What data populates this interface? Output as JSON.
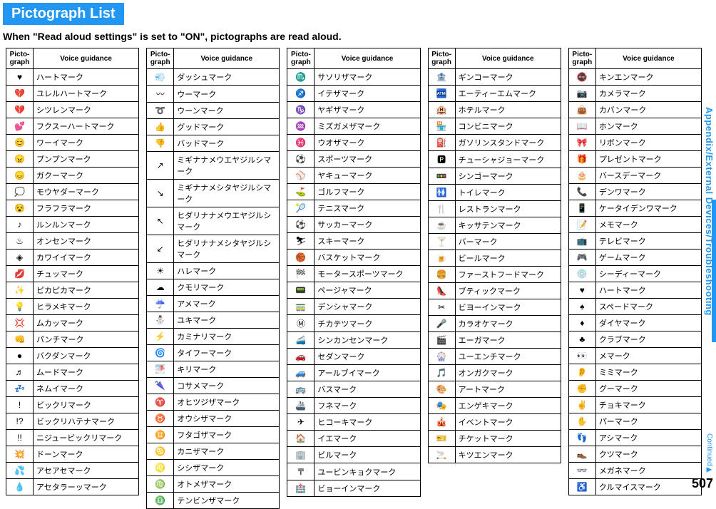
{
  "title": "Pictograph List",
  "subtitle": "When \"Read aloud settings\" is set to \"ON\", pictographs are read aloud.",
  "header1": "Picto-\ngraph",
  "header2": "Voice guidance",
  "sideTab": "Appendix/External Devices/Troubleshooting",
  "continued": "Continued",
  "pageNum": "507",
  "columns": [
    [
      {
        "i": "♥",
        "v": "ハートマーク"
      },
      {
        "i": "💔",
        "v": "ユレルハートマーク"
      },
      {
        "i": "💔",
        "v": "シツレンマーク"
      },
      {
        "i": "💕",
        "v": "フクスーハートマーク"
      },
      {
        "i": "😊",
        "v": "ワーイマーク"
      },
      {
        "i": "😠",
        "v": "プンプンマーク"
      },
      {
        "i": "😞",
        "v": "ガクーマーク"
      },
      {
        "i": "💭",
        "v": "モウヤダーマーク"
      },
      {
        "i": "😵",
        "v": "フラフラマーク"
      },
      {
        "i": "♪",
        "v": "ルンルンマーク"
      },
      {
        "i": "♨",
        "v": "オンセンマーク"
      },
      {
        "i": "◈",
        "v": "カワイイマーク"
      },
      {
        "i": "💋",
        "v": "チュッマーク"
      },
      {
        "i": "✨",
        "v": "ピカピカマーク"
      },
      {
        "i": "💡",
        "v": "ヒラメキマーク"
      },
      {
        "i": "💢",
        "v": "ムカッマーク"
      },
      {
        "i": "👊",
        "v": "パンチマーク"
      },
      {
        "i": "●",
        "v": "バクダンマーク"
      },
      {
        "i": "♬",
        "v": "ムードマーク"
      },
      {
        "i": "💤",
        "v": "ネムイマーク"
      },
      {
        "i": "!",
        "v": "ビックリマーク"
      },
      {
        "i": "!?",
        "v": "ビックリハテナマーク"
      },
      {
        "i": "!!",
        "v": "ニジュービックリマーク"
      },
      {
        "i": "💥",
        "v": "ドーンマーク"
      },
      {
        "i": "💦",
        "v": "アセアセマーク"
      },
      {
        "i": "💧",
        "v": "アセタラーッマーク"
      }
    ],
    [
      {
        "i": "💨",
        "v": "ダッシュマーク"
      },
      {
        "i": "〰",
        "v": "ウーマーク"
      },
      {
        "i": "➰",
        "v": "ウーンマーク"
      },
      {
        "i": "👍",
        "v": "グッドマーク"
      },
      {
        "i": "👎",
        "v": "バッドマーク"
      },
      {
        "i": "↗",
        "v": "ミギナナメウエヤジルシマーク"
      },
      {
        "i": "↘",
        "v": "ミギナナメシタヤジルシマーク"
      },
      {
        "i": "↖",
        "v": "ヒダリナナメウエヤジルシマーク"
      },
      {
        "i": "↙",
        "v": "ヒダリナナメシタヤジルシマーク"
      },
      {
        "i": "☀",
        "v": "ハレマーク"
      },
      {
        "i": "☁",
        "v": "クモリマーク"
      },
      {
        "i": "☔",
        "v": "アメマーク"
      },
      {
        "i": "⛄",
        "v": "ユキマーク"
      },
      {
        "i": "⚡",
        "v": "カミナリマーク"
      },
      {
        "i": "🌀",
        "v": "タイフーマーク"
      },
      {
        "i": "🌁",
        "v": "キリマーク"
      },
      {
        "i": "🌂",
        "v": "コサメマーク"
      },
      {
        "i": "♈",
        "v": "オヒツジザマーク"
      },
      {
        "i": "♉",
        "v": "オウシザマーク"
      },
      {
        "i": "♊",
        "v": "フタゴザマーク"
      },
      {
        "i": "♋",
        "v": "カニザマーク"
      },
      {
        "i": "♌",
        "v": "シシザマーク"
      },
      {
        "i": "♍",
        "v": "オトメザマーク"
      },
      {
        "i": "♎",
        "v": "テンビンザマーク"
      }
    ],
    [
      {
        "i": "♏",
        "v": "サソリザマーク"
      },
      {
        "i": "♐",
        "v": "イテザマーク"
      },
      {
        "i": "♑",
        "v": "ヤギザマーク"
      },
      {
        "i": "♒",
        "v": "ミズガメザマーク"
      },
      {
        "i": "♓",
        "v": "ウオザマーク"
      },
      {
        "i": "⚽",
        "v": "スポーツマーク"
      },
      {
        "i": "⚾",
        "v": "ヤキューマーク"
      },
      {
        "i": "⛳",
        "v": "ゴルフマーク"
      },
      {
        "i": "🎾",
        "v": "テニスマーク"
      },
      {
        "i": "⚽",
        "v": "サッカーマーク"
      },
      {
        "i": "⛷",
        "v": "スキーマーク"
      },
      {
        "i": "🏀",
        "v": "バスケットマーク"
      },
      {
        "i": "🏁",
        "v": "モータースポーツマーク"
      },
      {
        "i": "📟",
        "v": "ページャマーク"
      },
      {
        "i": "🚃",
        "v": "デンシャマーク"
      },
      {
        "i": "Ⓜ",
        "v": "チカテツマーク"
      },
      {
        "i": "🚄",
        "v": "シンカンセンマーク"
      },
      {
        "i": "🚗",
        "v": "セダンマーク"
      },
      {
        "i": "🚙",
        "v": "アールブイマーク"
      },
      {
        "i": "🚌",
        "v": "バスマーク"
      },
      {
        "i": "🚢",
        "v": "フネマーク"
      },
      {
        "i": "✈",
        "v": "ヒコーキマーク"
      },
      {
        "i": "🏠",
        "v": "イエマーク"
      },
      {
        "i": "🏢",
        "v": "ビルマーク"
      },
      {
        "i": "〒",
        "v": "ユービンキョクマーク"
      },
      {
        "i": "🏥",
        "v": "ビョーインマーク"
      }
    ],
    [
      {
        "i": "🏦",
        "v": "ギンコーマーク"
      },
      {
        "i": "🏧",
        "v": "エーティーエムマーク"
      },
      {
        "i": "🏨",
        "v": "ホテルマーク"
      },
      {
        "i": "🏪",
        "v": "コンビニマーク"
      },
      {
        "i": "⛽",
        "v": "ガソリンスタンドマーク"
      },
      {
        "i": "🅿",
        "v": "チューシャジョーマーク"
      },
      {
        "i": "🚥",
        "v": "シンゴーマーク"
      },
      {
        "i": "🚻",
        "v": "トイレマーク"
      },
      {
        "i": "🍴",
        "v": "レストランマーク"
      },
      {
        "i": "☕",
        "v": "キッサテンマーク"
      },
      {
        "i": "🍸",
        "v": "バーマーク"
      },
      {
        "i": "🍺",
        "v": "ビールマーク"
      },
      {
        "i": "🍔",
        "v": "ファーストフードマーク"
      },
      {
        "i": "👠",
        "v": "ブティックマーク"
      },
      {
        "i": "✂",
        "v": "ビヨーインマーク"
      },
      {
        "i": "🎤",
        "v": "カラオケマーク"
      },
      {
        "i": "🎬",
        "v": "エーガマーク"
      },
      {
        "i": "🎡",
        "v": "ユーエンチマーク"
      },
      {
        "i": "🎵",
        "v": "オンガクマーク"
      },
      {
        "i": "🎨",
        "v": "アートマーク"
      },
      {
        "i": "🎭",
        "v": "エンゲキマーク"
      },
      {
        "i": "🎪",
        "v": "イベントマーク"
      },
      {
        "i": "🎫",
        "v": "チケットマーク"
      },
      {
        "i": "🚬",
        "v": "キツエンマーク"
      }
    ],
    [
      {
        "i": "🚭",
        "v": "キンエンマーク"
      },
      {
        "i": "📷",
        "v": "カメラマーク"
      },
      {
        "i": "👜",
        "v": "カバンマーク"
      },
      {
        "i": "📖",
        "v": "ホンマーク"
      },
      {
        "i": "🎀",
        "v": "リボンマーク"
      },
      {
        "i": "🎁",
        "v": "プレゼントマーク"
      },
      {
        "i": "🎂",
        "v": "バースデーマーク"
      },
      {
        "i": "📞",
        "v": "デンワマーク"
      },
      {
        "i": "📱",
        "v": "ケータイデンワマーク"
      },
      {
        "i": "📝",
        "v": "メモマーク"
      },
      {
        "i": "📺",
        "v": "テレビマーク"
      },
      {
        "i": "🎮",
        "v": "ゲームマーク"
      },
      {
        "i": "💿",
        "v": "シーディーマーク"
      },
      {
        "i": "♥",
        "v": "ハートマーク"
      },
      {
        "i": "♠",
        "v": "スペードマーク"
      },
      {
        "i": "♦",
        "v": "ダイヤマーク"
      },
      {
        "i": "♣",
        "v": "クラブマーク"
      },
      {
        "i": "👀",
        "v": "メマーク"
      },
      {
        "i": "👂",
        "v": "ミミマーク"
      },
      {
        "i": "✊",
        "v": "グーマーク"
      },
      {
        "i": "✌",
        "v": "チョキマーク"
      },
      {
        "i": "✋",
        "v": "パーマーク"
      },
      {
        "i": "👣",
        "v": "アシマーク"
      },
      {
        "i": "👞",
        "v": "クツマーク"
      },
      {
        "i": "👓",
        "v": "メガネマーク"
      },
      {
        "i": "♿",
        "v": "クルマイスマーク"
      }
    ]
  ]
}
